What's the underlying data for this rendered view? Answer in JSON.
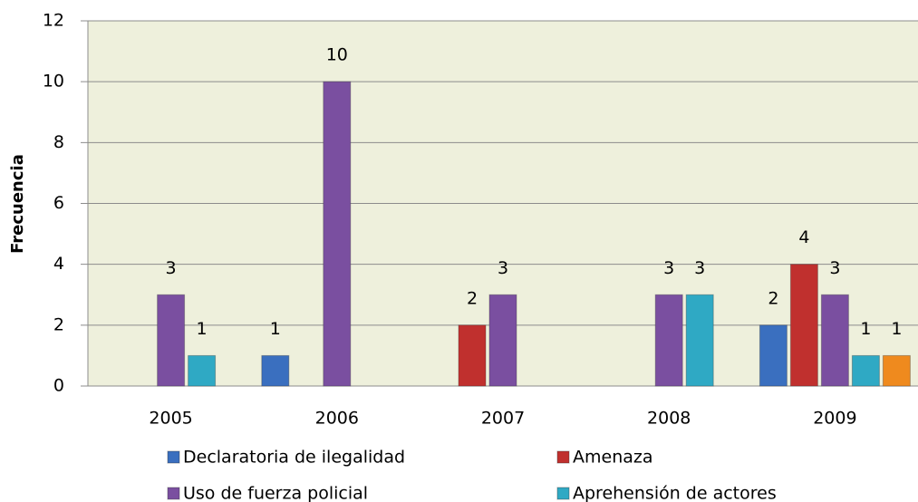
{
  "chart_data": {
    "type": "bar",
    "y_label": "Frecuencia",
    "categories": [
      "2005",
      "2006",
      "2007",
      "2008",
      "2009"
    ],
    "series": [
      {
        "name": "Declaratoria de ilegalidad",
        "color": "#3a6fbf",
        "values": [
          null,
          1,
          null,
          null,
          2
        ]
      },
      {
        "name": "Amenaza",
        "color": "#c0302e",
        "values": [
          null,
          null,
          2,
          null,
          4
        ]
      },
      {
        "name": "Uso de fuerza policial",
        "color": "#7a4fa0",
        "values": [
          3,
          10,
          3,
          3,
          3
        ]
      },
      {
        "name": "Aprehensión de actores",
        "color": "#2fa9c4",
        "values": [
          1,
          null,
          null,
          3,
          1
        ]
      },
      {
        "color": "#ef8a1e",
        "values": [
          null,
          null,
          null,
          null,
          1
        ]
      }
    ],
    "ylim": [
      0,
      12
    ],
    "yticks": [
      0,
      2,
      4,
      6,
      8,
      10,
      12
    ],
    "grid": true
  }
}
